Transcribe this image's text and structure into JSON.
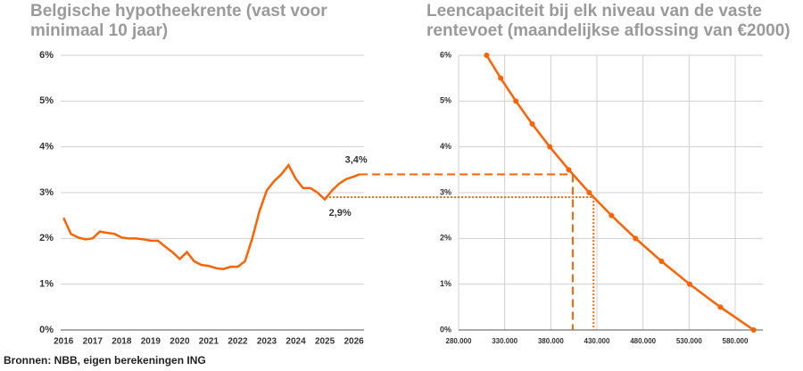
{
  "chart_data": [
    {
      "type": "line",
      "title": "Belgische hypotheekrente (vast voor minimaal 10 jaar)",
      "x": [
        2016.0,
        2016.25,
        2016.5,
        2016.75,
        2017.0,
        2017.25,
        2017.5,
        2017.75,
        2018.0,
        2018.25,
        2018.5,
        2018.75,
        2019.0,
        2019.25,
        2019.5,
        2019.75,
        2020.0,
        2020.25,
        2020.5,
        2020.75,
        2021.0,
        2021.25,
        2021.5,
        2021.75,
        2022.0,
        2022.25,
        2022.5,
        2022.75,
        2023.0,
        2023.25,
        2023.5,
        2023.75,
        2024.0,
        2024.25,
        2024.5,
        2024.75,
        2025.0,
        2025.25,
        2025.5,
        2025.75,
        2026.0,
        2026.2
      ],
      "series": [
        {
          "color": "#ff6200",
          "values": [
            2.45,
            2.1,
            2.02,
            1.98,
            2.0,
            2.15,
            2.12,
            2.1,
            2.02,
            2.0,
            2.0,
            1.98,
            1.95,
            1.95,
            1.82,
            1.7,
            1.55,
            1.7,
            1.5,
            1.42,
            1.4,
            1.35,
            1.33,
            1.38,
            1.38,
            1.5,
            2.0,
            2.6,
            3.05,
            3.25,
            3.4,
            3.6,
            3.3,
            3.1,
            3.1,
            3.0,
            2.85,
            3.05,
            3.2,
            3.3,
            3.35,
            3.4
          ]
        }
      ],
      "xlim": [
        2015.9,
        2026.35
      ],
      "xticks": [
        2016,
        2017,
        2018,
        2019,
        2020,
        2021,
        2022,
        2023,
        2024,
        2025,
        2026
      ],
      "ylim": [
        0,
        6
      ],
      "yticks": [
        {
          "value": 0,
          "label": "0%"
        },
        {
          "value": 1,
          "label": "1%"
        },
        {
          "value": 2,
          "label": "2%"
        },
        {
          "value": 3,
          "label": "3%"
        },
        {
          "value": 4,
          "label": "4%"
        },
        {
          "value": 5,
          "label": "5%"
        },
        {
          "value": 6,
          "label": "6%"
        }
      ],
      "grid": "y",
      "annotations": [
        {
          "value": 3.4,
          "label": "3,4%"
        },
        {
          "value": 2.9,
          "label": "2,9%"
        }
      ]
    },
    {
      "type": "line",
      "title": "Leencapaciteit bij elk niveau van de vaste rentevoet (maandelijkse aflossing van €2000)",
      "x": [
        600000,
        563900,
        530600,
        500100,
        471900,
        445800,
        421700,
        399500,
        378900,
        359800,
        342100,
        325700,
        310400
      ],
      "series": [
        {
          "color": "#ff6200",
          "values": [
            0,
            0.5,
            1,
            1.5,
            2,
            2.5,
            3,
            3.5,
            4,
            4.5,
            5,
            5.5,
            6
          ]
        }
      ],
      "xlim": [
        280000,
        610000
      ],
      "xticks": [
        {
          "value": 280000,
          "label": "280.000"
        },
        {
          "value": 330000,
          "label": "330.000"
        },
        {
          "value": 380000,
          "label": "380.000"
        },
        {
          "value": 430000,
          "label": "430.000"
        },
        {
          "value": 480000,
          "label": "480.000"
        },
        {
          "value": 530000,
          "label": "530.000"
        },
        {
          "value": 580000,
          "label": "580.000"
        }
      ],
      "ylim": [
        0,
        6
      ],
      "yticks": [
        {
          "value": 0,
          "label": "0%"
        },
        {
          "value": 1,
          "label": "1%"
        },
        {
          "value": 2,
          "label": "2%"
        },
        {
          "value": 3,
          "label": "3%"
        },
        {
          "value": 4,
          "label": "4%"
        },
        {
          "value": 5,
          "label": "5%"
        },
        {
          "value": 6,
          "label": "6%"
        }
      ],
      "grid": "both",
      "reference": [
        {
          "y": 3.4,
          "x": 403800
        },
        {
          "y": 2.9,
          "x": 426400
        }
      ]
    }
  ],
  "source": "Bronnen: NBB, eigen berekeningen ING"
}
